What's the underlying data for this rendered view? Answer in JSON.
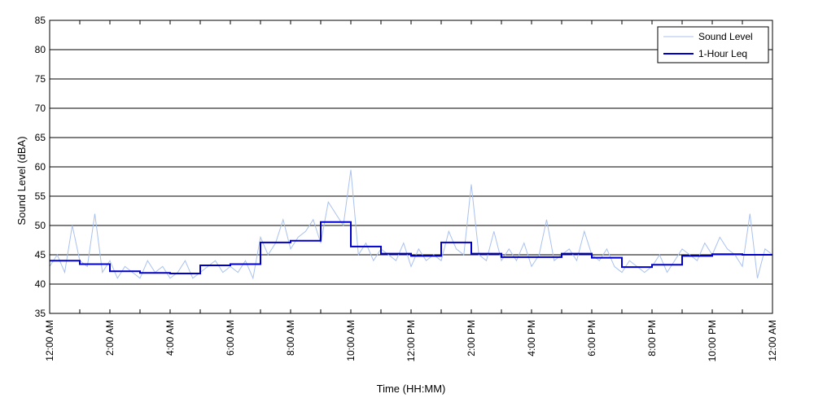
{
  "chart_data": {
    "type": "line",
    "title": "",
    "xlabel": "Time (HH:MM)",
    "ylabel": "Sound Level (dBA)",
    "ylim": [
      35,
      85
    ],
    "yticks": [
      35,
      40,
      45,
      50,
      55,
      60,
      65,
      70,
      75,
      80,
      85
    ],
    "xlim_hours": [
      0,
      24
    ],
    "xticks": [
      {
        "hour": 0,
        "label": "12:00 AM"
      },
      {
        "hour": 2,
        "label": "2:00 AM"
      },
      {
        "hour": 4,
        "label": "4:00 AM"
      },
      {
        "hour": 6,
        "label": "6:00 AM"
      },
      {
        "hour": 8,
        "label": "8:00 AM"
      },
      {
        "hour": 10,
        "label": "10:00 AM"
      },
      {
        "hour": 12,
        "label": "12:00 PM"
      },
      {
        "hour": 14,
        "label": "2:00 PM"
      },
      {
        "hour": 16,
        "label": "4:00 PM"
      },
      {
        "hour": 18,
        "label": "6:00 PM"
      },
      {
        "hour": 20,
        "label": "8:00 PM"
      },
      {
        "hour": 22,
        "label": "10:00 PM"
      },
      {
        "hour": 24,
        "label": "12:00 AM"
      }
    ],
    "grid": "horizontal",
    "legend_position": "top-right",
    "series": [
      {
        "name": "Sound Level",
        "color": "#a9c1f0",
        "style": "thin-line",
        "x": [
          0,
          0.25,
          0.5,
          0.75,
          1,
          1.25,
          1.5,
          1.75,
          2,
          2.25,
          2.5,
          2.75,
          3,
          3.25,
          3.5,
          3.75,
          4,
          4.25,
          4.5,
          4.75,
          5,
          5.25,
          5.5,
          5.75,
          6,
          6.25,
          6.5,
          6.75,
          7,
          7.25,
          7.5,
          7.75,
          8,
          8.25,
          8.5,
          8.75,
          9,
          9.25,
          9.5,
          9.75,
          10,
          10.25,
          10.5,
          10.75,
          11,
          11.25,
          11.5,
          11.75,
          12,
          12.25,
          12.5,
          12.75,
          13,
          13.25,
          13.5,
          13.75,
          14,
          14.25,
          14.5,
          14.75,
          15,
          15.25,
          15.5,
          15.75,
          16,
          16.25,
          16.5,
          16.75,
          17,
          17.25,
          17.5,
          17.75,
          18,
          18.25,
          18.5,
          18.75,
          19,
          19.25,
          19.5,
          19.75,
          20,
          20.25,
          20.5,
          20.75,
          21,
          21.25,
          21.5,
          21.75,
          22,
          22.25,
          22.5,
          22.75,
          23,
          23.25,
          23.5,
          23.75,
          24
        ],
        "values": [
          43,
          45,
          42,
          50,
          44,
          43,
          52,
          42,
          44,
          41,
          43,
          42,
          41,
          44,
          42,
          43,
          41,
          42,
          44,
          41,
          42,
          43,
          44,
          42,
          43,
          42,
          44,
          41,
          48,
          45,
          47,
          51,
          46,
          48,
          49,
          51,
          47,
          54,
          52,
          50,
          59.5,
          45,
          47,
          44,
          46,
          45,
          44,
          47,
          43,
          46,
          44,
          45,
          44,
          49,
          46,
          45,
          57,
          45,
          44,
          49,
          44,
          46,
          44,
          47,
          43,
          45,
          51,
          44,
          45,
          46,
          44,
          49,
          45,
          44,
          46,
          43,
          42,
          44,
          43,
          42,
          43,
          45,
          42,
          44,
          46,
          45,
          44,
          47,
          45,
          48,
          46,
          45,
          43,
          52,
          41,
          46,
          45
        ]
      },
      {
        "name": "1-Hour Leq",
        "color": "#0000cc",
        "style": "step",
        "values": [
          44.0,
          43.4,
          42.2,
          41.9,
          41.8,
          43.2,
          43.4,
          47.1,
          47.4,
          50.6,
          46.4,
          45.2,
          44.8,
          47.1,
          45.2,
          44.6,
          44.6,
          45.2,
          44.5,
          42.9,
          43.3,
          44.8,
          45.1,
          45.0
        ]
      }
    ]
  }
}
